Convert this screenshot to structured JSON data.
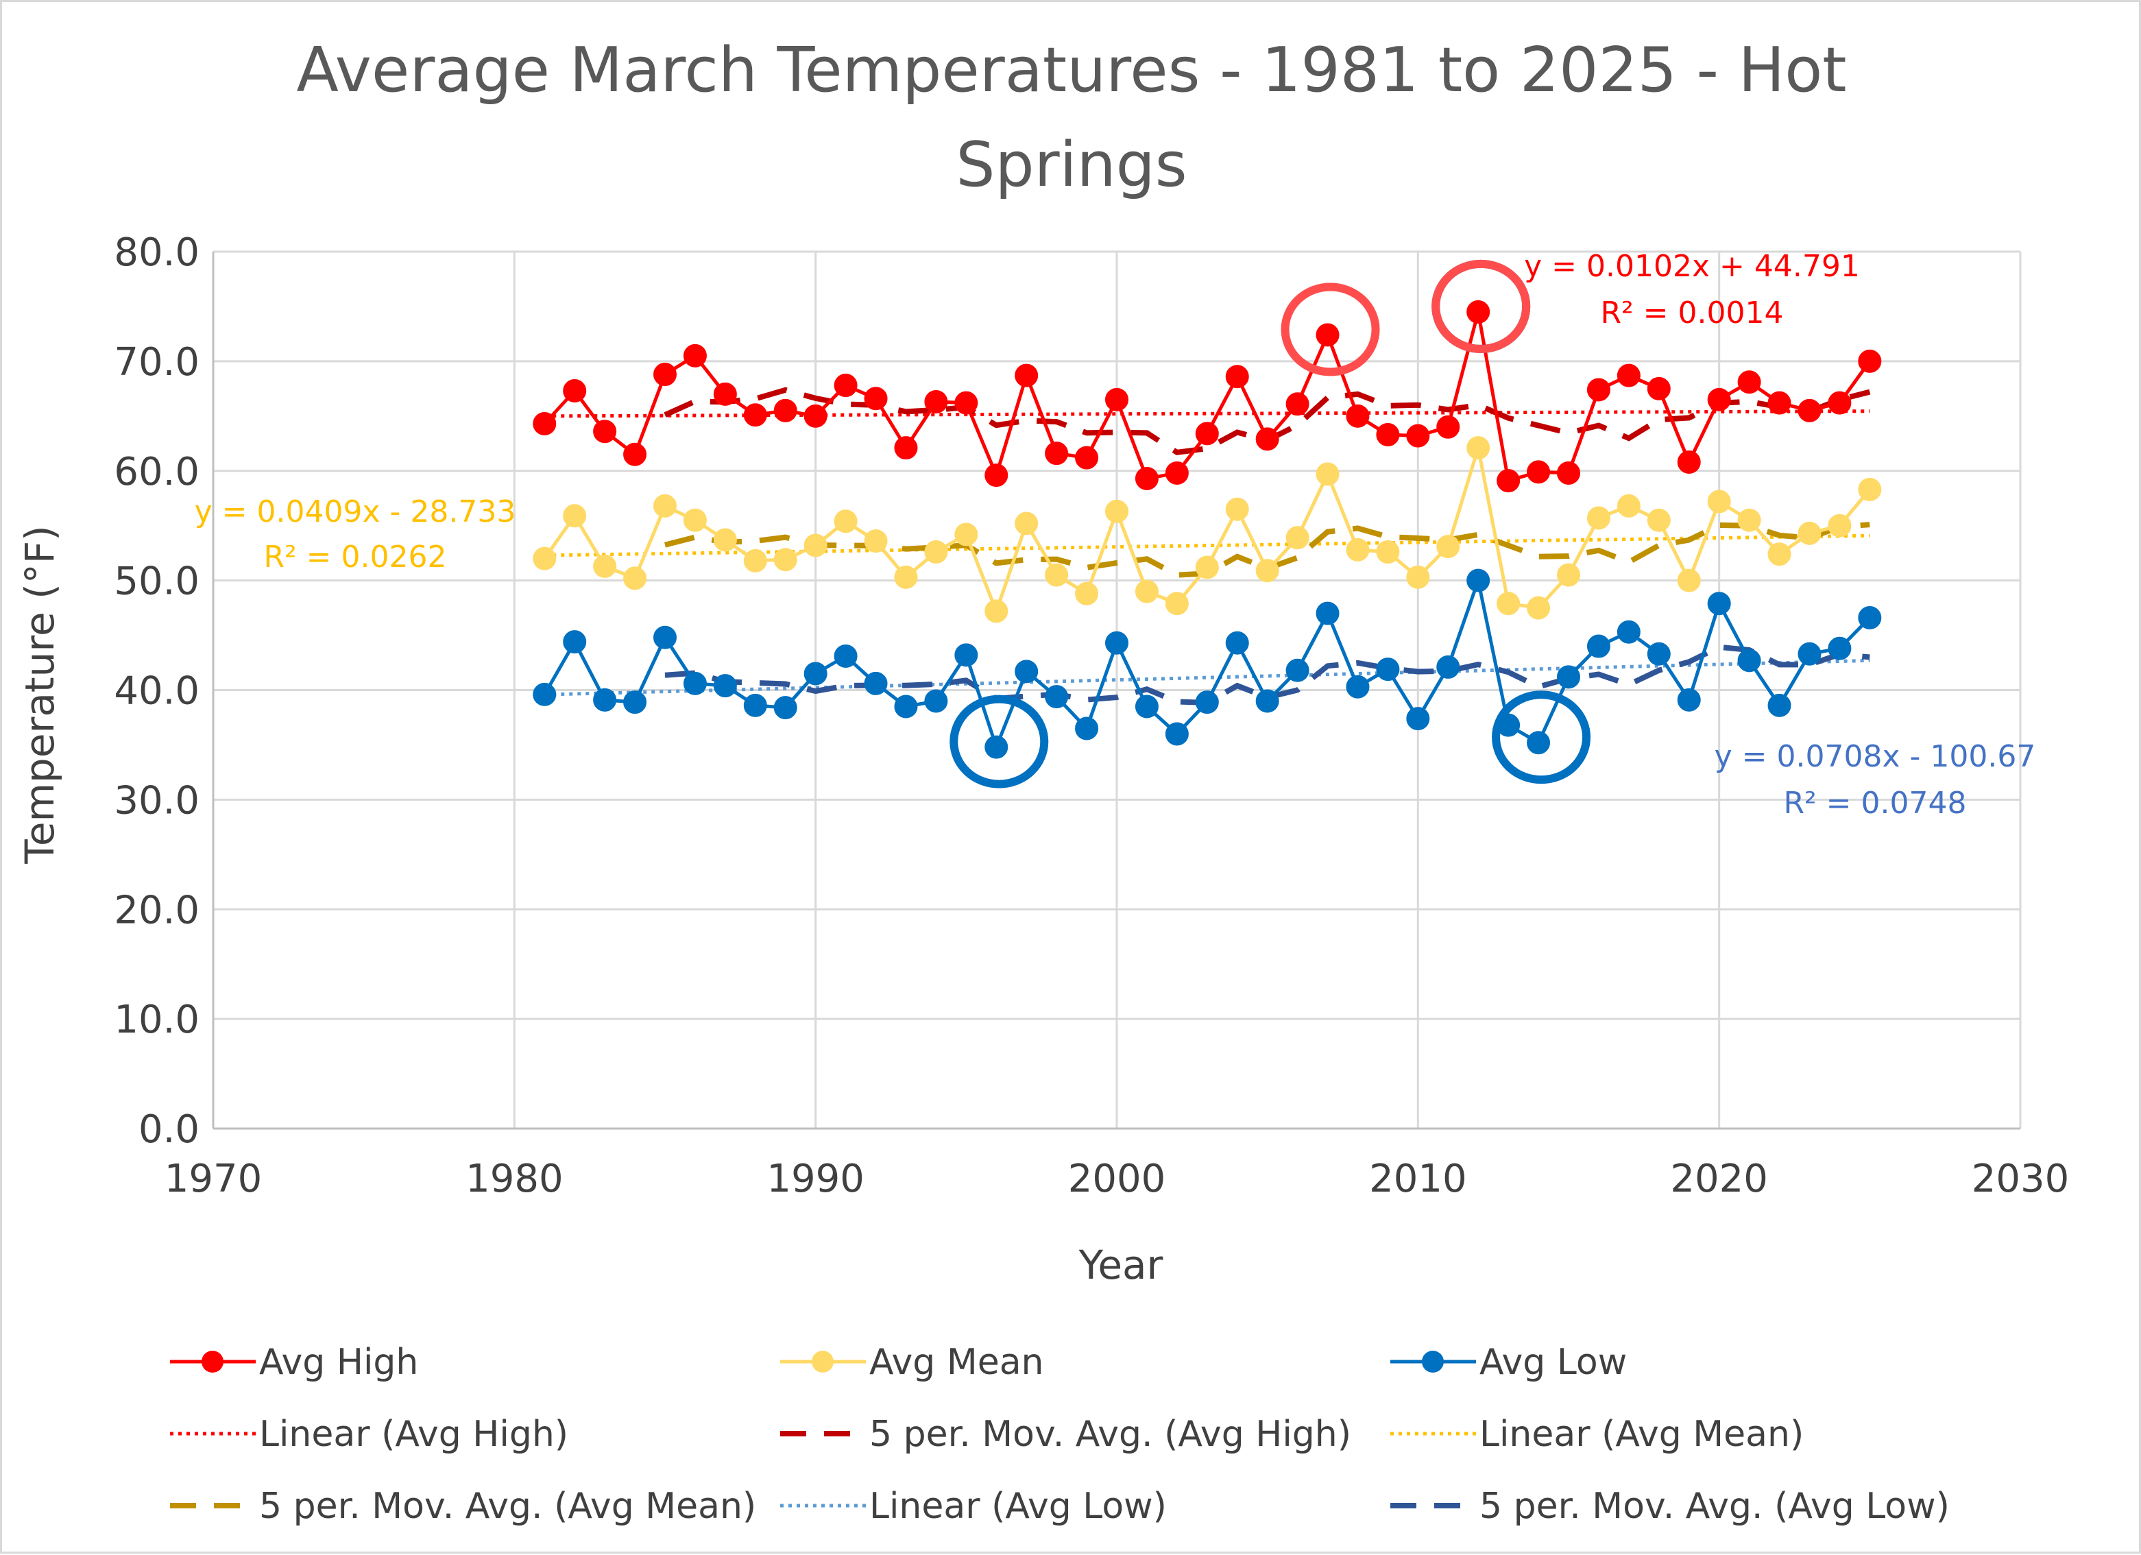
{
  "chart_data": {
    "type": "line",
    "title_line1": "Average March Temperatures - 1981 to 2025 - Hot",
    "title_line2": "Springs",
    "xlabel": "Year",
    "ylabel": "Temperature (°F)",
    "xlim": [
      1970,
      2030
    ],
    "ylim": [
      0,
      80
    ],
    "x_ticks": [
      "1970",
      "1980",
      "1990",
      "2000",
      "2010",
      "2020",
      "2030"
    ],
    "y_ticks": [
      "0.0",
      "10.0",
      "20.0",
      "30.0",
      "40.0",
      "50.0",
      "60.0",
      "70.0",
      "80.0"
    ],
    "grid": true,
    "legend_position": "bottom",
    "x": [
      1981,
      1982,
      1983,
      1984,
      1985,
      1986,
      1987,
      1988,
      1989,
      1990,
      1991,
      1992,
      1993,
      1994,
      1995,
      1996,
      1997,
      1998,
      1999,
      2000,
      2001,
      2002,
      2003,
      2004,
      2005,
      2006,
      2007,
      2008,
      2009,
      2010,
      2011,
      2012,
      2013,
      2014,
      2015,
      2016,
      2017,
      2018,
      2019,
      2020,
      2021,
      2022,
      2023,
      2024,
      2025
    ],
    "series": [
      {
        "name": "Avg High",
        "color": "#ff0000",
        "values": [
          64.3,
          67.3,
          63.6,
          61.5,
          68.8,
          70.5,
          67.0,
          65.1,
          65.5,
          65.0,
          67.8,
          66.6,
          62.1,
          66.3,
          66.2,
          59.6,
          68.7,
          61.6,
          61.2,
          66.5,
          59.3,
          59.8,
          63.4,
          68.6,
          62.9,
          66.1,
          72.4,
          65.0,
          63.3,
          63.2,
          64.0,
          74.5,
          59.1,
          59.9,
          59.8,
          67.4,
          68.7,
          67.5,
          60.8,
          66.5,
          68.1,
          66.2,
          65.5,
          66.2,
          70.0
        ]
      },
      {
        "name": "Avg Mean",
        "color": "#ffd966",
        "values": [
          52.0,
          55.9,
          51.3,
          50.2,
          56.8,
          55.5,
          53.7,
          51.8,
          51.9,
          53.2,
          55.4,
          53.6,
          50.3,
          52.6,
          54.2,
          47.2,
          55.2,
          50.5,
          48.8,
          56.3,
          49.0,
          47.9,
          51.2,
          56.5,
          50.9,
          53.9,
          59.7,
          52.8,
          52.6,
          50.3,
          53.1,
          62.1,
          47.9,
          47.5,
          50.5,
          55.7,
          56.8,
          55.5,
          50.0,
          57.2,
          55.5,
          52.4,
          54.3,
          55.0,
          58.3
        ]
      },
      {
        "name": "Avg Low",
        "color": "#0070c0",
        "values": [
          39.6,
          44.4,
          39.1,
          38.9,
          44.8,
          40.6,
          40.4,
          38.6,
          38.4,
          41.5,
          43.1,
          40.6,
          38.5,
          39.0,
          43.2,
          34.8,
          41.7,
          39.4,
          36.5,
          44.3,
          38.5,
          36.0,
          38.9,
          44.3,
          39.0,
          41.8,
          47.0,
          40.3,
          41.9,
          37.4,
          42.1,
          50.0,
          36.8,
          35.2,
          41.2,
          44.0,
          45.3,
          43.3,
          39.1,
          47.9,
          42.7,
          38.6,
          43.3,
          43.8,
          46.6
        ]
      }
    ],
    "trendlines": [
      {
        "name": "Linear (Avg High)",
        "color": "#ff0000",
        "slope": 0.0102,
        "intercept": 44.791,
        "equation": "y = 0.0102x + 44.791",
        "r2": "R² = 0.0014"
      },
      {
        "name": "Linear (Avg Mean)",
        "color": "#ffc000",
        "slope": 0.0409,
        "intercept": -28.733,
        "equation": "y = 0.0409x - 28.733",
        "r2": "R² = 0.0262"
      },
      {
        "name": "Linear (Avg Low)",
        "color": "#5b9bd5",
        "slope": 0.0708,
        "intercept": -100.67,
        "equation": "y = 0.0708x - 100.67",
        "r2": "R² = 0.0748"
      }
    ],
    "moving_averages": [
      {
        "name": "5 per. Mov. Avg. (Avg High)",
        "color": "#c00000",
        "source": 0,
        "period": 5
      },
      {
        "name": "5 per. Mov. Avg. (Avg Mean)",
        "color": "#bf9000",
        "source": 1,
        "period": 5
      },
      {
        "name": "5 per. Mov. Avg. (Avg Low)",
        "color": "#2f5597",
        "source": 2,
        "period": 5
      }
    ],
    "highlight_circles": [
      {
        "year": 2007,
        "value": 72.4,
        "color": "#ff4d4d"
      },
      {
        "year": 2012,
        "value": 74.5,
        "color": "#0070c0"
      },
      {
        "year": 2012,
        "value": 74.5,
        "color": "#ff4d4d"
      },
      {
        "year": 1996,
        "value": 34.8,
        "color": "#0070c0"
      },
      {
        "year": 2014,
        "value": 35.2,
        "color": "#0070c0"
      }
    ]
  }
}
